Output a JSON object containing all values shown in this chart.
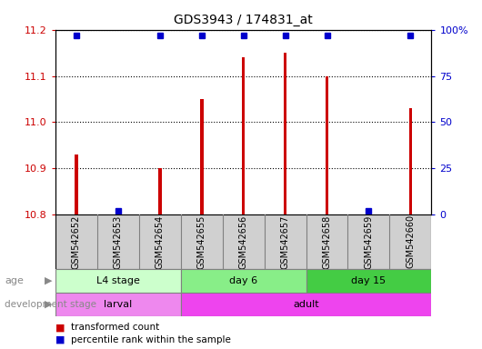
{
  "title": "GDS3943 / 174831_at",
  "samples": [
    "GSM542652",
    "GSM542653",
    "GSM542654",
    "GSM542655",
    "GSM542656",
    "GSM542657",
    "GSM542658",
    "GSM542659",
    "GSM542660"
  ],
  "bar_values": [
    10.93,
    10.81,
    10.9,
    11.05,
    11.14,
    11.15,
    11.1,
    10.81,
    11.03
  ],
  "percentile_values": [
    97,
    2,
    97,
    97,
    97,
    97,
    97,
    2,
    97
  ],
  "ylim_left": [
    10.8,
    11.2
  ],
  "ylim_right": [
    0,
    100
  ],
  "yticks_left": [
    10.8,
    10.9,
    11.0,
    11.1,
    11.2
  ],
  "yticks_right": [
    0,
    25,
    50,
    75,
    100
  ],
  "bar_color": "#cc0000",
  "dot_color": "#0000cc",
  "age_groups": [
    {
      "label": "L4 stage",
      "start": 0,
      "end": 3,
      "color": "#ccffcc"
    },
    {
      "label": "day 6",
      "start": 3,
      "end": 6,
      "color": "#88ee88"
    },
    {
      "label": "day 15",
      "start": 6,
      "end": 9,
      "color": "#44cc44"
    }
  ],
  "dev_groups": [
    {
      "label": "larval",
      "start": 0,
      "end": 3,
      "color": "#ee88ee"
    },
    {
      "label": "adult",
      "start": 3,
      "end": 9,
      "color": "#ee44ee"
    }
  ],
  "age_label": "age",
  "dev_label": "development stage",
  "legend_bar_label": "transformed count",
  "legend_dot_label": "percentile rank within the sample",
  "tick_label_color_left": "#cc0000",
  "tick_label_color_right": "#0000cc",
  "grid_color": "black",
  "sample_box_color": "#d0d0d0",
  "bar_width": 0.08
}
